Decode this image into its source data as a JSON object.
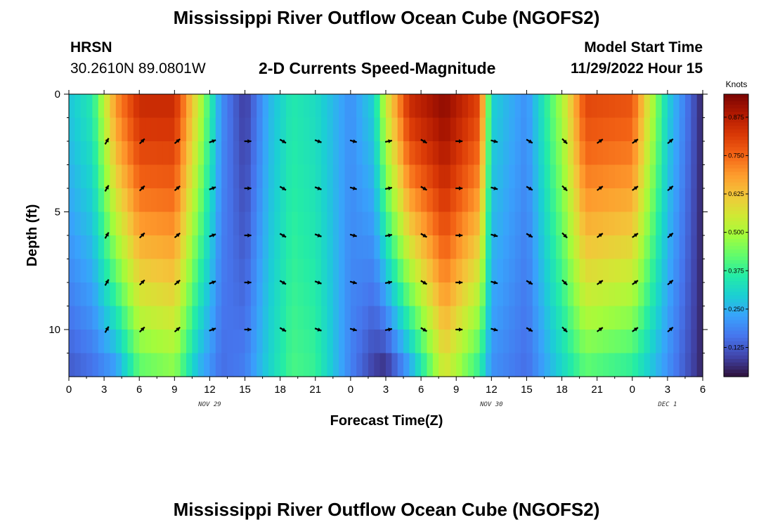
{
  "header": {
    "title": "Mississippi River Outflow Ocean Cube (NGOFS2)",
    "station_id": "HRSN",
    "coords": "30.2610N  89.0801W",
    "subtitle": "2-D Currents Speed-Magnitude",
    "model_start_label": "Model Start Time",
    "model_start_value": "11/29/2022 Hour 15"
  },
  "footer": {
    "title": "Mississippi River Outflow Ocean Cube (NGOFS2)"
  },
  "chart_data": {
    "type": "heatmap",
    "title": "2-D Currents Speed-Magnitude",
    "xlabel": "Forecast Time(Z)",
    "ylabel": "Depth (ft)",
    "x_ticks": [
      "0",
      "3",
      "6",
      "9",
      "12",
      "15",
      "18",
      "21",
      "0",
      "3",
      "6",
      "9",
      "12",
      "15",
      "18",
      "21",
      "0",
      "3",
      "6"
    ],
    "x_range_hours": [
      0,
      54
    ],
    "y_range_ft": [
      0,
      12
    ],
    "y_ticks": [
      "0",
      "5",
      "10"
    ],
    "y_tick_values": [
      0,
      5,
      10
    ],
    "date_labels": [
      {
        "text": "NOV 29",
        "hour": 12
      },
      {
        "text": "NOV 30",
        "hour": 36
      },
      {
        "text": "DEC 1",
        "hour": 51
      }
    ],
    "colorbar": {
      "label": "Knots",
      "ticks": [
        "0.875",
        "0.750",
        "0.625",
        "0.500",
        "0.375",
        "0.250",
        "0.125"
      ],
      "tick_values": [
        0.875,
        0.75,
        0.625,
        0.5,
        0.375,
        0.25,
        0.125
      ],
      "range": [
        0.03,
        0.95
      ],
      "colors": [
        "#30123b",
        "#4145ab",
        "#4675ed",
        "#39a2fc",
        "#1bcfd4",
        "#24eca6",
        "#61fc6c",
        "#a4fc3b",
        "#d1e834",
        "#f3c63a",
        "#fe9b2d",
        "#f36315",
        "#d93806",
        "#b11901",
        "#7a0403"
      ]
    },
    "speed_profile_by_hour": [
      {
        "hour": 0,
        "surface": 0.28,
        "bottom": 0.12
      },
      {
        "hour": 2,
        "surface": 0.35,
        "bottom": 0.15
      },
      {
        "hour": 4,
        "surface": 0.7,
        "bottom": 0.2
      },
      {
        "hour": 6,
        "surface": 0.85,
        "bottom": 0.4
      },
      {
        "hour": 9,
        "surface": 0.85,
        "bottom": 0.45
      },
      {
        "hour": 11,
        "surface": 0.55,
        "bottom": 0.25
      },
      {
        "hour": 13,
        "surface": 0.2,
        "bottom": 0.15
      },
      {
        "hour": 15,
        "surface": 0.08,
        "bottom": 0.18
      },
      {
        "hour": 17,
        "surface": 0.25,
        "bottom": 0.3
      },
      {
        "hour": 19,
        "surface": 0.35,
        "bottom": 0.4
      },
      {
        "hour": 21,
        "surface": 0.32,
        "bottom": 0.38
      },
      {
        "hour": 24,
        "surface": 0.2,
        "bottom": 0.18
      },
      {
        "hour": 26,
        "surface": 0.3,
        "bottom": 0.08
      },
      {
        "hour": 27,
        "surface": 0.55,
        "bottom": 0.05
      },
      {
        "hour": 29,
        "surface": 0.85,
        "bottom": 0.2
      },
      {
        "hour": 32,
        "surface": 0.93,
        "bottom": 0.55
      },
      {
        "hour": 35,
        "surface": 0.8,
        "bottom": 0.35
      },
      {
        "hour": 36,
        "surface": 0.3,
        "bottom": 0.2
      },
      {
        "hour": 39,
        "surface": 0.2,
        "bottom": 0.15
      },
      {
        "hour": 42,
        "surface": 0.5,
        "bottom": 0.3
      },
      {
        "hour": 44,
        "surface": 0.8,
        "bottom": 0.4
      },
      {
        "hour": 48,
        "surface": 0.78,
        "bottom": 0.35
      },
      {
        "hour": 51,
        "surface": 0.3,
        "bottom": 0.2
      },
      {
        "hour": 54,
        "surface": 0.05,
        "bottom": 0.05
      }
    ],
    "vectors": {
      "rows_ft": [
        2,
        4,
        6,
        8,
        10
      ],
      "hours": [
        3,
        6,
        9,
        12,
        15,
        18,
        21,
        24,
        27,
        30,
        33,
        36,
        39,
        42,
        45,
        48,
        51
      ],
      "direction_by_hour_deg": [
        60,
        45,
        40,
        20,
        0,
        -30,
        -20,
        -15,
        10,
        -30,
        0,
        -15,
        -30,
        -45,
        35,
        35,
        40
      ]
    }
  }
}
